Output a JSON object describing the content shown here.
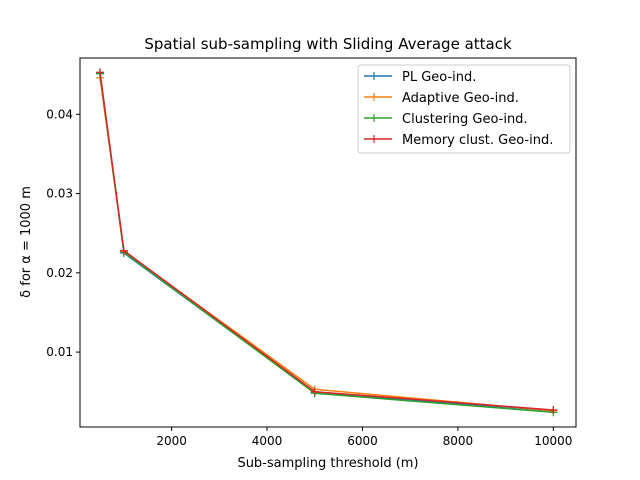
{
  "chart_data": {
    "type": "line",
    "title": "Spatial sub-sampling with Sliding Average attack",
    "xlabel": "Sub-sampling threshold (m)",
    "ylabel": "δ for α = 1000 m",
    "xlim": [
      80,
      10475
    ],
    "ylim": [
      0.00055,
      0.0471
    ],
    "x": [
      500,
      1000,
      5000,
      10000
    ],
    "xticks": [
      2000,
      4000,
      6000,
      8000,
      10000
    ],
    "yticks": [
      0.01,
      0.02,
      0.03,
      0.04
    ],
    "xtick_labels": [
      "2000",
      "4000",
      "6000",
      "8000",
      "10000"
    ],
    "ytick_labels": [
      "0.01",
      "0.02",
      "0.03",
      "0.04"
    ],
    "legend_position": "top-right",
    "series": [
      {
        "name": "PL Geo-ind.",
        "color": "#1f77b4",
        "values": [
          0.0452,
          0.0225,
          0.0049,
          0.0026
        ]
      },
      {
        "name": "Adaptive Geo-ind.",
        "color": "#ff7f0e",
        "values": [
          0.0446,
          0.0227,
          0.0053,
          0.0026
        ]
      },
      {
        "name": "Clustering Geo-ind.",
        "color": "#2ca02c",
        "values": [
          0.0451,
          0.0226,
          0.0048,
          0.0024
        ]
      },
      {
        "name": "Memory clust. Geo-ind.",
        "color": "#d62728",
        "values": [
          0.0453,
          0.0228,
          0.005,
          0.0027
        ]
      }
    ]
  }
}
